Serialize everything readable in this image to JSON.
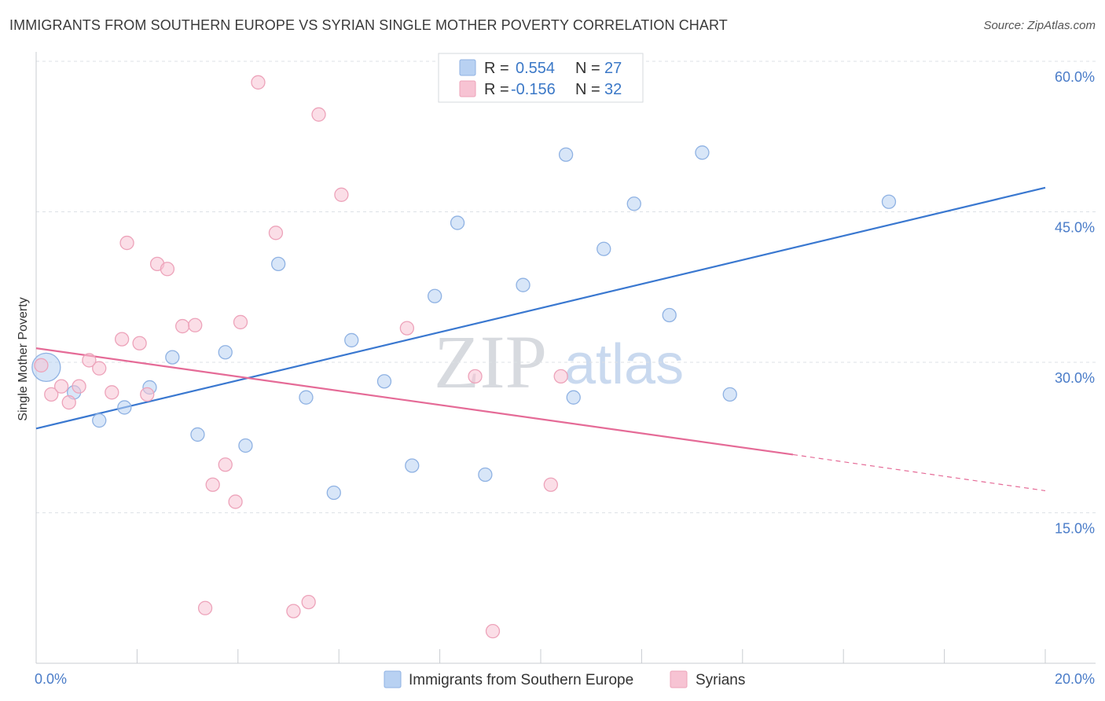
{
  "header": {
    "title": "IMMIGRANTS FROM SOUTHERN EUROPE VS SYRIAN SINGLE MOTHER POVERTY CORRELATION CHART",
    "source": "Source: ZipAtlas.com"
  },
  "watermark": {
    "zip": "ZIP",
    "atlas": "atlas"
  },
  "colors": {
    "blue": "#3a78d0",
    "blue_fill": "#b8d1f2",
    "pink": "#e56b97",
    "pink_fill": "#f7c3d3",
    "grid": "#dde1e6",
    "tick_text": "#4a7cc8"
  },
  "legend": {
    "rows": [
      {
        "r_label": "R =",
        "r_value": "0.554",
        "n_label": "N =",
        "n_value": "27",
        "series": "blue"
      },
      {
        "r_label": "R =",
        "r_value": "-0.156",
        "n_label": "N =",
        "n_value": "32",
        "series": "pink"
      }
    ]
  },
  "bottom_legend": {
    "items": [
      {
        "label": "Immigrants from Southern Europe",
        "series": "blue"
      },
      {
        "label": "Syrians",
        "series": "pink"
      }
    ]
  },
  "chart_data": {
    "type": "scatter",
    "title": "IMMIGRANTS FROM SOUTHERN EUROPE VS SYRIAN SINGLE MOTHER POVERTY CORRELATION CHART",
    "xlabel": "",
    "ylabel": "Single Mother Poverty",
    "xlim": [
      0,
      20
    ],
    "ylim": [
      0,
      60
    ],
    "x_tick_labels": [
      "0.0%",
      "20.0%"
    ],
    "y_ticks": [
      15,
      30,
      45,
      60
    ],
    "y_tick_labels": [
      "15.0%",
      "30.0%",
      "45.0%",
      "60.0%"
    ],
    "grid": true,
    "series": [
      {
        "name": "Immigrants from Southern Europe",
        "color": "blue",
        "points": [
          {
            "x": 0.2,
            "y": 29.5,
            "big": true
          },
          {
            "x": 0.75,
            "y": 27.0
          },
          {
            "x": 1.25,
            "y": 24.2
          },
          {
            "x": 1.75,
            "y": 25.5
          },
          {
            "x": 2.25,
            "y": 27.5
          },
          {
            "x": 2.7,
            "y": 30.5
          },
          {
            "x": 3.2,
            "y": 22.8
          },
          {
            "x": 3.75,
            "y": 31.0
          },
          {
            "x": 4.15,
            "y": 21.7
          },
          {
            "x": 4.8,
            "y": 39.8
          },
          {
            "x": 5.35,
            "y": 26.5
          },
          {
            "x": 5.9,
            "y": 17.0
          },
          {
            "x": 6.25,
            "y": 32.2
          },
          {
            "x": 6.9,
            "y": 28.1
          },
          {
            "x": 7.45,
            "y": 19.7
          },
          {
            "x": 7.9,
            "y": 36.6
          },
          {
            "x": 8.35,
            "y": 43.9
          },
          {
            "x": 8.9,
            "y": 18.8
          },
          {
            "x": 9.65,
            "y": 37.7
          },
          {
            "x": 10.5,
            "y": 50.7
          },
          {
            "x": 10.65,
            "y": 26.5
          },
          {
            "x": 11.25,
            "y": 41.3
          },
          {
            "x": 11.85,
            "y": 45.8
          },
          {
            "x": 12.55,
            "y": 34.7
          },
          {
            "x": 13.2,
            "y": 50.9
          },
          {
            "x": 13.75,
            "y": 26.8
          },
          {
            "x": 16.9,
            "y": 46.0
          }
        ],
        "trend": {
          "x1": 0,
          "y1": 23.4,
          "x2": 20,
          "y2": 47.4
        }
      },
      {
        "name": "Syrians",
        "color": "pink",
        "points": [
          {
            "x": 0.1,
            "y": 29.7
          },
          {
            "x": 0.3,
            "y": 26.8
          },
          {
            "x": 0.5,
            "y": 27.6
          },
          {
            "x": 0.65,
            "y": 26.0
          },
          {
            "x": 0.85,
            "y": 27.6
          },
          {
            "x": 1.05,
            "y": 30.2
          },
          {
            "x": 1.25,
            "y": 29.4
          },
          {
            "x": 1.5,
            "y": 27.0
          },
          {
            "x": 1.7,
            "y": 32.3
          },
          {
            "x": 1.8,
            "y": 41.9
          },
          {
            "x": 2.05,
            "y": 31.9
          },
          {
            "x": 2.2,
            "y": 26.8
          },
          {
            "x": 2.4,
            "y": 39.8
          },
          {
            "x": 2.6,
            "y": 39.3
          },
          {
            "x": 2.9,
            "y": 33.6
          },
          {
            "x": 3.15,
            "y": 33.7
          },
          {
            "x": 3.35,
            "y": 5.5
          },
          {
            "x": 3.5,
            "y": 17.8
          },
          {
            "x": 3.75,
            "y": 19.8
          },
          {
            "x": 3.95,
            "y": 16.1
          },
          {
            "x": 4.05,
            "y": 34.0
          },
          {
            "x": 4.4,
            "y": 57.9
          },
          {
            "x": 4.75,
            "y": 42.9
          },
          {
            "x": 5.1,
            "y": 5.2
          },
          {
            "x": 5.4,
            "y": 6.1
          },
          {
            "x": 5.6,
            "y": 54.7
          },
          {
            "x": 6.05,
            "y": 46.7
          },
          {
            "x": 7.35,
            "y": 33.4
          },
          {
            "x": 8.7,
            "y": 28.6
          },
          {
            "x": 9.05,
            "y": 3.2
          },
          {
            "x": 10.2,
            "y": 17.8
          },
          {
            "x": 10.4,
            "y": 28.6
          }
        ],
        "trend": {
          "x1": 0,
          "y1": 31.4,
          "x2": 15,
          "y2": 20.8
        },
        "trend_dashed": {
          "x1": 15,
          "y1": 20.8,
          "x2": 20,
          "y2": 17.2
        }
      }
    ]
  }
}
